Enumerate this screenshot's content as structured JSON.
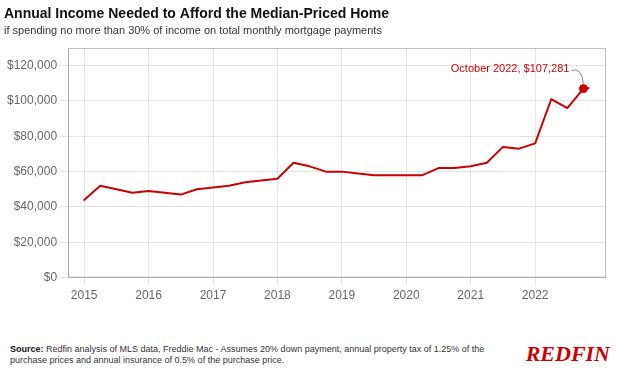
{
  "chart_data": {
    "type": "line",
    "title": "Annual Income Needed to Afford the Median-Priced Home",
    "subtitle": "if spending no more than 30% of income on total monthly mortgage payments",
    "x": [
      2015.0,
      2015.25,
      2015.5,
      2015.75,
      2016.0,
      2016.25,
      2016.5,
      2016.75,
      2017.0,
      2017.25,
      2017.5,
      2017.75,
      2018.0,
      2018.25,
      2018.5,
      2018.75,
      2019.0,
      2019.25,
      2019.5,
      2019.75,
      2020.0,
      2020.25,
      2020.5,
      2020.75,
      2021.0,
      2021.25,
      2021.5,
      2021.75,
      2022.0,
      2022.25,
      2022.5,
      2022.75,
      2022.83
    ],
    "values": [
      44000,
      52000,
      50000,
      48000,
      49000,
      48000,
      47000,
      50000,
      51000,
      52000,
      54000,
      55000,
      56000,
      65000,
      63000,
      60000,
      60000,
      59000,
      58000,
      58000,
      58000,
      58000,
      62000,
      62000,
      63000,
      65000,
      74000,
      73000,
      76000,
      101000,
      96000,
      107000,
      107281
    ],
    "color": "#cc0000",
    "xlim": [
      2014.75,
      2023.1
    ],
    "xticks": [
      2015,
      2016,
      2017,
      2018,
      2019,
      2020,
      2021,
      2022
    ],
    "ylim": [
      0,
      130000
    ],
    "yticks": [
      {
        "value": 0,
        "label": "$0"
      },
      {
        "value": 20000,
        "label": "$20,000"
      },
      {
        "value": 40000,
        "label": "$40,000"
      },
      {
        "value": 60000,
        "label": "$60,000"
      },
      {
        "value": 80000,
        "label": "$80,000"
      },
      {
        "value": 100000,
        "label": "$100,000"
      },
      {
        "value": 120000,
        "label": "$120,000"
      }
    ],
    "grid": true,
    "annotations": [
      {
        "text": "October 2022, $107,281",
        "x": 2022.75,
        "y": 107000,
        "color": "#cc0000",
        "marker": "circle"
      }
    ],
    "source": {
      "bold": "Source:",
      "text": " Redfin analysis of MLS data, Freddie Mac - Assumes 20% down payment, annual property tax of 1.25% of the\npurchase prices and annual insurance of 0.5% of the purchase price."
    },
    "logo": {
      "text": "REDFIN",
      "color": "#cc0000"
    }
  }
}
